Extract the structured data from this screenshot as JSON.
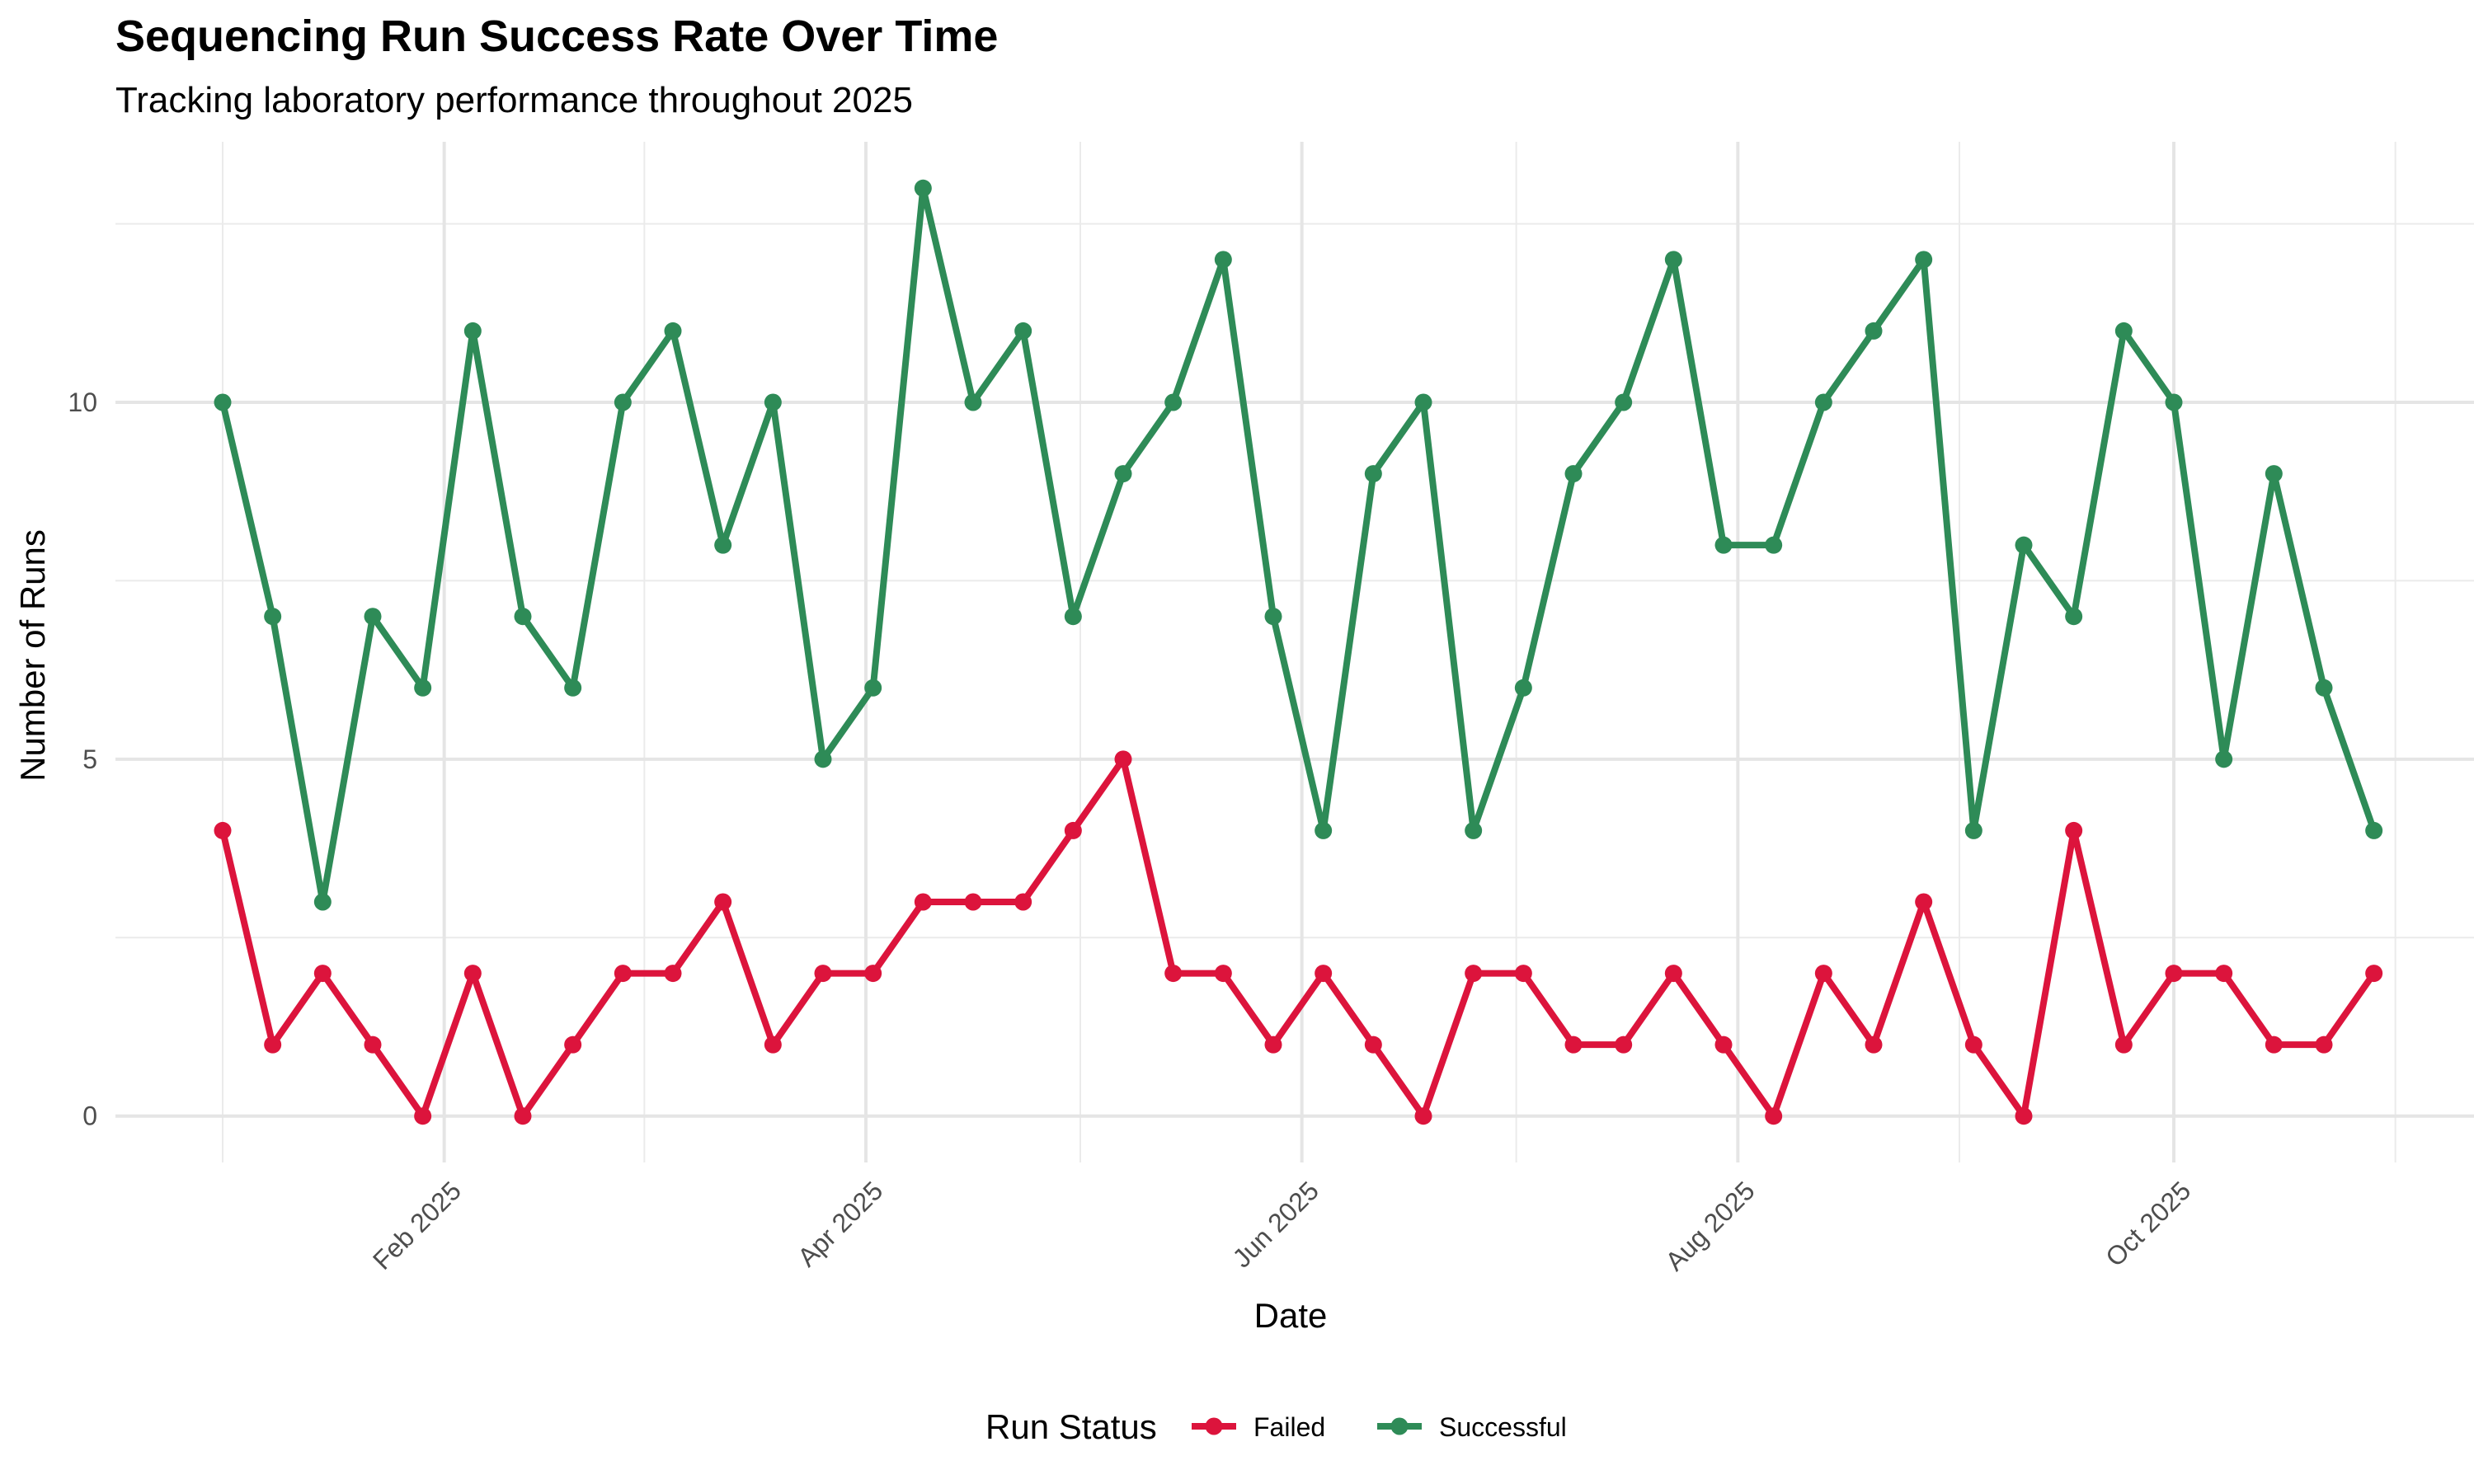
{
  "chart_data": {
    "type": "line",
    "title": "Sequencing Run Success Rate Over Time",
    "subtitle": "Tracking laboratory performance throughout 2025",
    "xlabel": "Date",
    "ylabel": "Number of Runs",
    "x": [
      "2025-01-01",
      "2025-01-08",
      "2025-01-15",
      "2025-01-22",
      "2025-01-29",
      "2025-02-05",
      "2025-02-12",
      "2025-02-19",
      "2025-02-26",
      "2025-03-05",
      "2025-03-12",
      "2025-03-19",
      "2025-03-26",
      "2025-04-02",
      "2025-04-09",
      "2025-04-16",
      "2025-04-23",
      "2025-04-30",
      "2025-05-07",
      "2025-05-14",
      "2025-05-21",
      "2025-05-28",
      "2025-06-04",
      "2025-06-11",
      "2025-06-18",
      "2025-06-25",
      "2025-07-02",
      "2025-07-09",
      "2025-07-16",
      "2025-07-23",
      "2025-07-30",
      "2025-08-06",
      "2025-08-13",
      "2025-08-20",
      "2025-08-27",
      "2025-09-03",
      "2025-09-10",
      "2025-09-17",
      "2025-09-24",
      "2025-10-01",
      "2025-10-08",
      "2025-10-15",
      "2025-10-22",
      "2025-10-29"
    ],
    "series": [
      {
        "name": "Failed",
        "color": "#dc143c",
        "values": [
          4,
          1,
          2,
          1,
          0,
          2,
          0,
          1,
          2,
          2,
          3,
          1,
          2,
          2,
          3,
          3,
          3,
          4,
          5,
          2,
          2,
          1,
          2,
          1,
          0,
          2,
          2,
          1,
          1,
          2,
          1,
          0,
          2,
          1,
          3,
          1,
          0,
          4,
          1,
          2,
          2,
          1,
          1,
          2
        ]
      },
      {
        "name": "Successful",
        "color": "#2e8b57",
        "values": [
          10,
          7,
          3,
          7,
          6,
          11,
          7,
          6,
          10,
          11,
          8,
          10,
          5,
          6,
          13,
          10,
          11,
          7,
          9,
          10,
          12,
          7,
          4,
          9,
          10,
          4,
          6,
          9,
          10,
          12,
          8,
          8,
          10,
          11,
          12,
          4,
          8,
          7,
          11,
          10,
          5,
          9,
          6,
          4
        ]
      }
    ],
    "xticks": [
      {
        "date": "2025-02-01",
        "label": "Feb 2025"
      },
      {
        "date": "2025-04-01",
        "label": "Apr 2025"
      },
      {
        "date": "2025-06-01",
        "label": "Jun 2025"
      },
      {
        "date": "2025-08-01",
        "label": "Aug 2025"
      },
      {
        "date": "2025-10-01",
        "label": "Oct 2025"
      }
    ],
    "xminor": [
      "2025-01-01",
      "2025-03-01",
      "2025-05-01",
      "2025-07-01",
      "2025-09-01",
      "2025-11-01"
    ],
    "xlim": [
      "2024-12-17",
      "2025-11-12"
    ],
    "yticks": [
      0,
      5,
      10
    ],
    "yminor": [
      2.5,
      7.5,
      12.5
    ],
    "ylim": [
      -0.65,
      13.65
    ],
    "grid": true,
    "legend": {
      "title": "Run Status",
      "position": "bottom"
    }
  }
}
